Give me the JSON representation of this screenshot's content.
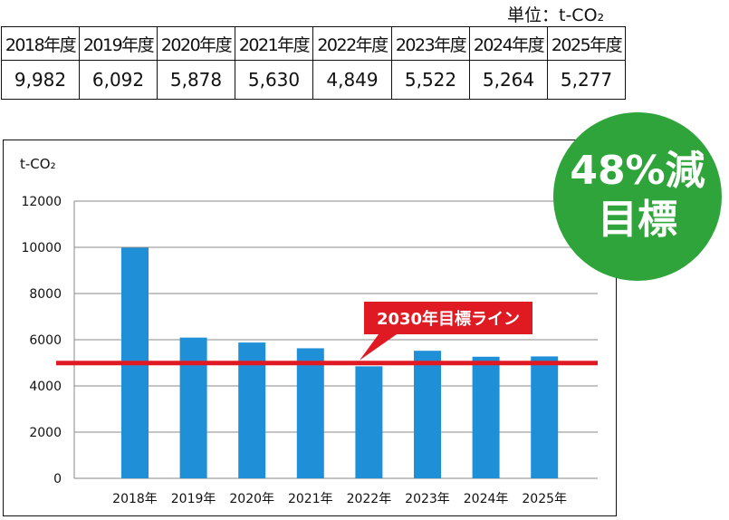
{
  "unit_label": "単位：t-CO₂",
  "table": {
    "headers": [
      "2018年度",
      "2019年度",
      "2020年度",
      "2021年度",
      "2022年度",
      "2023年度",
      "2024年度",
      "2025年度"
    ],
    "values": [
      "9,982",
      "6,092",
      "5,878",
      "5,630",
      "4,849",
      "5,522",
      "5,264",
      "5,277"
    ]
  },
  "badge": {
    "line1": "48%減",
    "line2": "目標"
  },
  "chart_data": {
    "type": "bar",
    "ylabel": "t-CO₂",
    "categories": [
      "2018年",
      "2019年",
      "2020年",
      "2021年",
      "2022年",
      "2023年",
      "2024年",
      "2025年"
    ],
    "values": [
      9982,
      6092,
      5878,
      5630,
      4849,
      5522,
      5264,
      5277
    ],
    "ylim": [
      0,
      12000
    ],
    "yticks": [
      0,
      2000,
      4000,
      6000,
      8000,
      10000,
      12000
    ],
    "grid": true,
    "bar_color": "#1f8fd8",
    "target_line": {
      "label": "2030年目標ライン",
      "value": 4991,
      "color": "#e01a22"
    }
  }
}
